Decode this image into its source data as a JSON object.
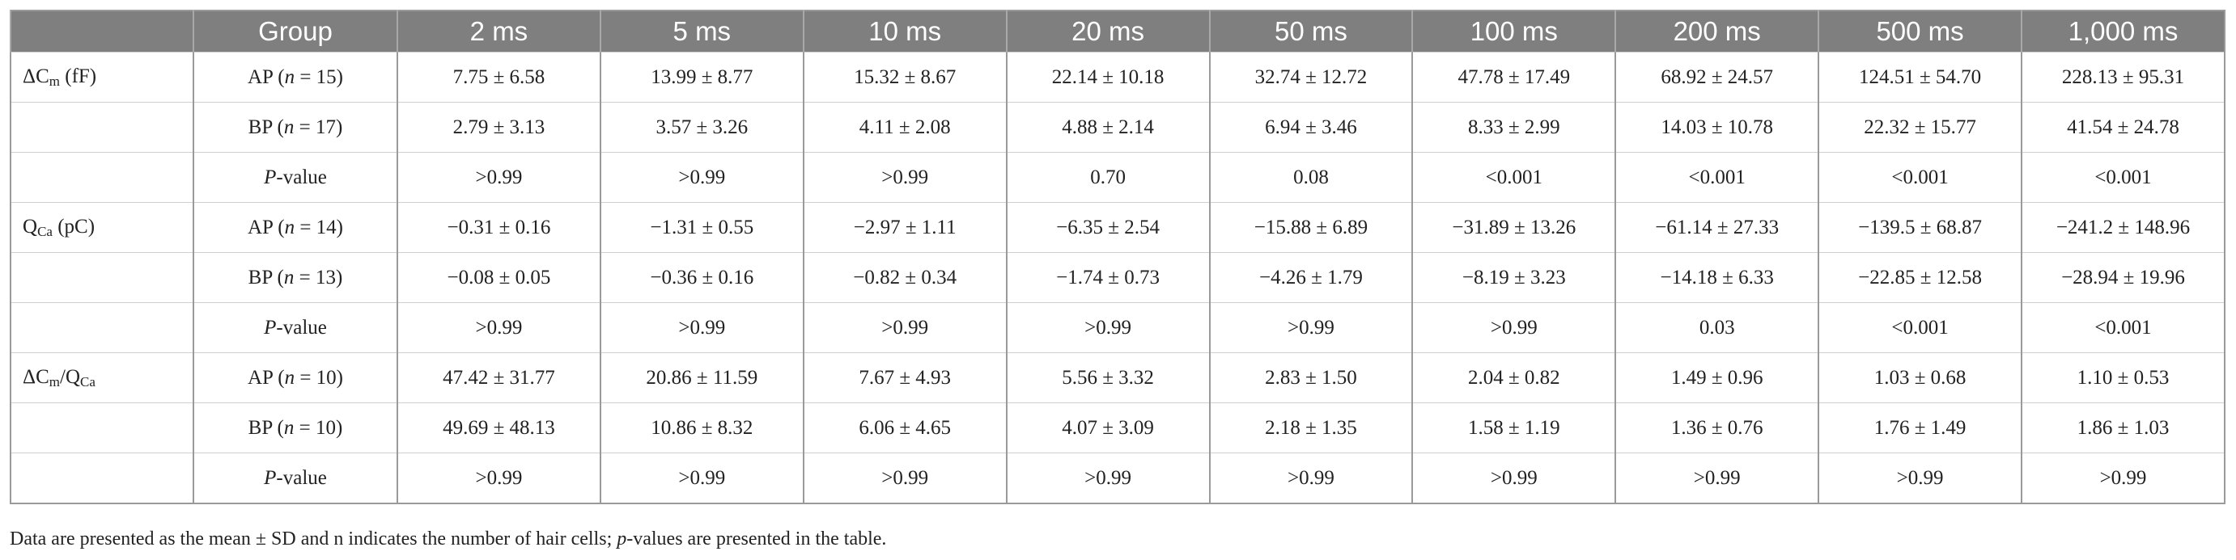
{
  "table": {
    "header": [
      "Group",
      "2 ms",
      "5 ms",
      "10 ms",
      "20 ms",
      "50 ms",
      "100 ms",
      "200 ms",
      "500 ms",
      "1,000 ms"
    ],
    "sections": [
      {
        "label": [
          {
            "text": "ΔC"
          },
          {
            "text": "m",
            "style": "sub"
          },
          {
            "text": " (fF)"
          }
        ],
        "rows": [
          {
            "group": [
              {
                "text": "AP ("
              },
              {
                "text": "n",
                "style": "italic"
              },
              {
                "text": " = 15)"
              }
            ],
            "cells": [
              "7.75 ± 6.58",
              "13.99 ± 8.77",
              "15.32 ± 8.67",
              "22.14 ± 10.18",
              "32.74 ± 12.72",
              "47.78 ± 17.49",
              "68.92 ± 24.57",
              "124.51 ± 54.70",
              "228.13 ± 95.31"
            ]
          },
          {
            "group": [
              {
                "text": "BP ("
              },
              {
                "text": "n",
                "style": "italic"
              },
              {
                "text": " = 17)"
              }
            ],
            "cells": [
              "2.79 ± 3.13",
              "3.57 ± 3.26",
              "4.11 ± 2.08",
              "4.88 ± 2.14",
              "6.94 ± 3.46",
              "8.33 ± 2.99",
              "14.03 ± 10.78",
              "22.32 ± 15.77",
              "41.54 ± 24.78"
            ]
          },
          {
            "group": [
              {
                "text": "P",
                "style": "italic"
              },
              {
                "text": "-value"
              }
            ],
            "cells": [
              ">0.99",
              ">0.99",
              ">0.99",
              "0.70",
              "0.08",
              "<0.001",
              "<0.001",
              "<0.001",
              "<0.001"
            ]
          }
        ]
      },
      {
        "label": [
          {
            "text": "Q"
          },
          {
            "text": "Ca",
            "style": "sub"
          },
          {
            "text": " (pC)"
          }
        ],
        "rows": [
          {
            "group": [
              {
                "text": "AP ("
              },
              {
                "text": "n",
                "style": "italic"
              },
              {
                "text": " = 14)"
              }
            ],
            "cells": [
              "−0.31 ± 0.16",
              "−1.31 ± 0.55",
              "−2.97 ± 1.11",
              "−6.35 ± 2.54",
              "−15.88 ± 6.89",
              "−31.89 ± 13.26",
              "−61.14 ± 27.33",
              "−139.5 ± 68.87",
              "−241.2 ± 148.96"
            ]
          },
          {
            "group": [
              {
                "text": "BP ("
              },
              {
                "text": "n",
                "style": "italic"
              },
              {
                "text": " = 13)"
              }
            ],
            "cells": [
              "−0.08 ± 0.05",
              "−0.36 ± 0.16",
              "−0.82 ± 0.34",
              "−1.74 ± 0.73",
              "−4.26 ± 1.79",
              "−8.19 ± 3.23",
              "−14.18 ± 6.33",
              "−22.85 ± 12.58",
              "−28.94 ± 19.96"
            ]
          },
          {
            "group": [
              {
                "text": "P",
                "style": "italic"
              },
              {
                "text": "-value"
              }
            ],
            "cells": [
              ">0.99",
              ">0.99",
              ">0.99",
              ">0.99",
              ">0.99",
              ">0.99",
              "0.03",
              "<0.001",
              "<0.001"
            ]
          }
        ]
      },
      {
        "label": [
          {
            "text": "ΔC"
          },
          {
            "text": "m",
            "style": "sub"
          },
          {
            "text": "/Q"
          },
          {
            "text": "Ca",
            "style": "sub"
          }
        ],
        "rows": [
          {
            "group": [
              {
                "text": "AP ("
              },
              {
                "text": "n",
                "style": "italic"
              },
              {
                "text": " = 10)"
              }
            ],
            "cells": [
              "47.42 ± 31.77",
              "20.86 ± 11.59",
              "7.67 ± 4.93",
              "5.56 ± 3.32",
              "2.83 ± 1.50",
              "2.04 ± 0.82",
              "1.49 ± 0.96",
              "1.03 ± 0.68",
              "1.10 ± 0.53"
            ]
          },
          {
            "group": [
              {
                "text": "BP ("
              },
              {
                "text": "n",
                "style": "italic"
              },
              {
                "text": " = 10)"
              }
            ],
            "cells": [
              "49.69 ± 48.13",
              "10.86 ± 8.32",
              "6.06 ± 4.65",
              "4.07 ± 3.09",
              "2.18 ± 1.35",
              "1.58 ± 1.19",
              "1.36 ± 0.76",
              "1.76 ± 1.49",
              "1.86 ± 1.03"
            ]
          },
          {
            "group": [
              {
                "text": "P",
                "style": "italic"
              },
              {
                "text": "-value"
              }
            ],
            "cells": [
              ">0.99",
              ">0.99",
              ">0.99",
              ">0.99",
              ">0.99",
              ">0.99",
              ">0.99",
              ">0.99",
              ">0.99"
            ]
          }
        ]
      }
    ]
  },
  "footnote": [
    {
      "text": "Data are presented as the mean ± SD and n indicates the number of hair cells; "
    },
    {
      "text": "p",
      "style": "italic"
    },
    {
      "text": "-values are presented in the table."
    }
  ]
}
